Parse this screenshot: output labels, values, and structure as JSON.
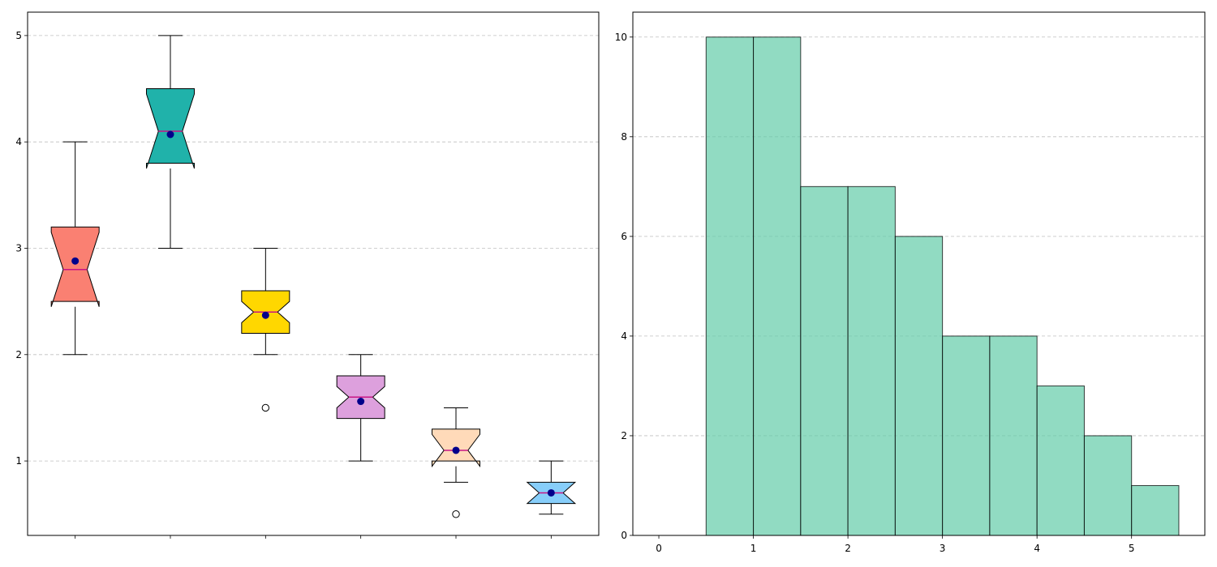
{
  "chart_data": [
    {
      "type": "box",
      "notched": true,
      "show_means": true,
      "grid": "y",
      "ylim": [
        0.3,
        5.22
      ],
      "yticks": [
        "1",
        "2",
        "3",
        "4",
        "5"
      ],
      "colors": {
        "median": "#c71585",
        "mean": "#00008b"
      },
      "boxes": [
        {
          "q1": 2.5,
          "median": 2.8,
          "q3": 3.2,
          "whisker_low": 2.0,
          "whisker_high": 4.0,
          "mean": 2.88,
          "notch_low": 2.45,
          "notch_high": 3.15,
          "fliers": [],
          "color": "#fa8072"
        },
        {
          "q1": 3.8,
          "median": 4.1,
          "q3": 4.5,
          "whisker_low": 3.0,
          "whisker_high": 5.0,
          "mean": 4.07,
          "notch_low": 3.75,
          "notch_high": 4.45,
          "fliers": [],
          "color": "#20b2aa"
        },
        {
          "q1": 2.2,
          "median": 2.4,
          "q3": 2.6,
          "whisker_low": 2.0,
          "whisker_high": 3.0,
          "mean": 2.37,
          "notch_low": 2.3,
          "notch_high": 2.5,
          "fliers": [
            1.5
          ],
          "color": "#ffd700"
        },
        {
          "q1": 1.4,
          "median": 1.6,
          "q3": 1.8,
          "whisker_low": 1.0,
          "whisker_high": 2.0,
          "mean": 1.56,
          "notch_low": 1.5,
          "notch_high": 1.7,
          "fliers": [],
          "color": "#dda0dd"
        },
        {
          "q1": 1.0,
          "median": 1.1,
          "q3": 1.3,
          "whisker_low": 0.8,
          "whisker_high": 1.5,
          "mean": 1.1,
          "notch_low": 0.95,
          "notch_high": 1.25,
          "fliers": [
            0.5
          ],
          "color": "#ffdab9"
        },
        {
          "q1": 0.6,
          "median": 0.7,
          "q3": 0.8,
          "whisker_low": 0.5,
          "whisker_high": 1.0,
          "mean": 0.7,
          "notch_low": 0.6,
          "notch_high": 0.8,
          "fliers": [],
          "color": "#87cefa"
        }
      ]
    },
    {
      "type": "histogram",
      "grid": "y",
      "color": "#66cdaa",
      "xlim": [
        -0.275,
        5.775
      ],
      "ylim": [
        0,
        10.5
      ],
      "xticks": [
        "0",
        "1",
        "2",
        "3",
        "4",
        "5"
      ],
      "yticks": [
        "0",
        "2",
        "4",
        "6",
        "8",
        "10"
      ],
      "bins": [
        {
          "x0": 0.5,
          "x1": 1.0,
          "count": 10
        },
        {
          "x0": 1.0,
          "x1": 1.5,
          "count": 10
        },
        {
          "x0": 1.5,
          "x1": 2.0,
          "count": 7
        },
        {
          "x0": 2.0,
          "x1": 2.5,
          "count": 7
        },
        {
          "x0": 2.5,
          "x1": 3.0,
          "count": 6
        },
        {
          "x0": 3.0,
          "x1": 3.5,
          "count": 4
        },
        {
          "x0": 3.5,
          "x1": 4.0,
          "count": 4
        },
        {
          "x0": 4.0,
          "x1": 4.5,
          "count": 3
        },
        {
          "x0": 4.5,
          "x1": 5.0,
          "count": 2
        },
        {
          "x0": 5.0,
          "x1": 5.5,
          "count": 1
        }
      ]
    }
  ]
}
